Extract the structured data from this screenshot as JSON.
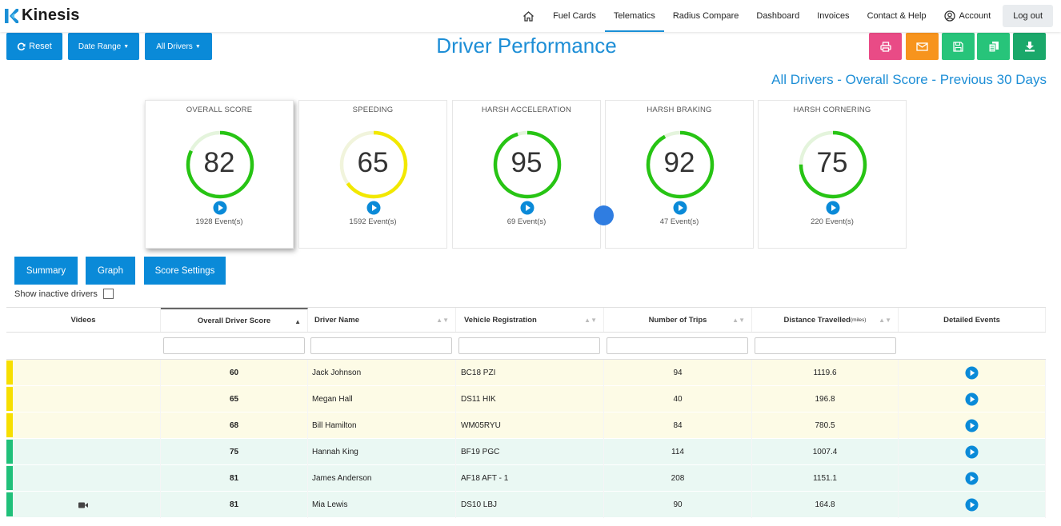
{
  "brand": {
    "name": "Kinesis"
  },
  "nav": {
    "items": [
      {
        "label": "Fuel Cards",
        "active": false
      },
      {
        "label": "Telematics",
        "active": true
      },
      {
        "label": "Radius Compare",
        "active": false
      },
      {
        "label": "Dashboard",
        "active": false
      },
      {
        "label": "Invoices",
        "active": false
      },
      {
        "label": "Contact & Help",
        "active": false
      }
    ],
    "account": "Account",
    "logout": "Log out"
  },
  "toolbar": {
    "reset": "Reset",
    "date_range": "Date Range",
    "all_drivers": "All Drivers"
  },
  "page": {
    "title": "Driver Performance",
    "subtitle": "All Drivers - Overall Score - Previous 30 Days"
  },
  "actions": [
    {
      "name": "print-button",
      "icon": "print-icon",
      "color": "#e94b86"
    },
    {
      "name": "email-button",
      "icon": "envelope-icon",
      "color": "#f7941d"
    },
    {
      "name": "save-button",
      "icon": "floppy-icon",
      "color": "#27c47a"
    },
    {
      "name": "copy-button",
      "icon": "copy-icon",
      "color": "#27c47a"
    },
    {
      "name": "download-button",
      "icon": "download-icon",
      "color": "#1aa86a"
    }
  ],
  "cards": [
    {
      "title": "OVERALL SCORE",
      "score": "82",
      "events": "1928 Event(s)",
      "ring_fraction": 0.82,
      "color": "#27c414",
      "selected": true
    },
    {
      "title": "SPEEDING",
      "score": "65",
      "events": "1592 Event(s)",
      "ring_fraction": 0.65,
      "color": "#f2e800",
      "selected": false
    },
    {
      "title": "HARSH ACCELERATION",
      "score": "95",
      "events": "69 Event(s)",
      "ring_fraction": 0.95,
      "color": "#27c414",
      "selected": false
    },
    {
      "title": "HARSH BRAKING",
      "score": "92",
      "events": "47 Event(s)",
      "ring_fraction": 0.92,
      "color": "#27c414",
      "selected": false
    },
    {
      "title": "HARSH CORNERING",
      "score": "75",
      "events": "220 Event(s)",
      "ring_fraction": 0.75,
      "color": "#27c414",
      "selected": false
    }
  ],
  "views": {
    "summary": "Summary",
    "graph": "Graph",
    "score_settings": "Score Settings"
  },
  "show_inactive": "Show inactive drivers",
  "table": {
    "headers": {
      "videos": "Videos",
      "score": "Overall Driver Score",
      "name": "Driver Name",
      "reg": "Vehicle Registration",
      "trips": "Number of Trips",
      "distance": "Distance Travelled",
      "distance_unit": "(miles)",
      "events": "Detailed Events"
    },
    "rows": [
      {
        "score": "60",
        "name": "Jack Johnson",
        "reg": "BC18 PZI",
        "trips": "94",
        "distance": "1119.6",
        "video": false,
        "band": "yellow"
      },
      {
        "score": "65",
        "name": "Megan Hall",
        "reg": "DS11 HIK",
        "trips": "40",
        "distance": "196.8",
        "video": false,
        "band": "yellow"
      },
      {
        "score": "68",
        "name": "Bill Hamilton",
        "reg": "WM05RYU",
        "trips": "84",
        "distance": "780.5",
        "video": false,
        "band": "yellow"
      },
      {
        "score": "75",
        "name": "Hannah King",
        "reg": "BF19 PGC",
        "trips": "114",
        "distance": "1007.4",
        "video": false,
        "band": "green"
      },
      {
        "score": "81",
        "name": "James Anderson",
        "reg": "AF18 AFT - 1",
        "trips": "208",
        "distance": "1151.1",
        "video": false,
        "band": "green"
      },
      {
        "score": "81",
        "name": "Mia Lewis",
        "reg": "DS10 LBJ",
        "trips": "90",
        "distance": "164.8",
        "video": true,
        "band": "green"
      }
    ]
  },
  "colors": {
    "accent": "#0a8ad8",
    "title_blue": "#1d8ed6",
    "yellow_row": "#fdfbe6",
    "yellow_bar": "#f7df00",
    "green_row": "#eaf8f3",
    "green_bar": "#20c07a",
    "ring_track": "#e4f4dc",
    "ring_track_yellow": "#f1f4dc"
  }
}
